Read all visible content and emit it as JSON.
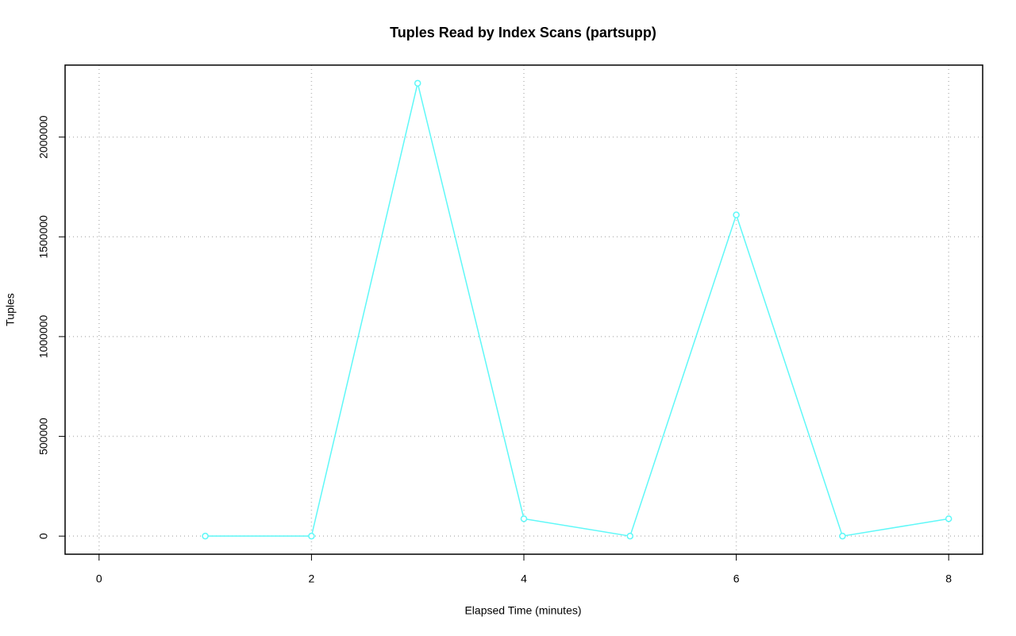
{
  "chart_data": {
    "type": "line",
    "title": "Tuples Read by Index Scans (partsupp)",
    "x_label": "Elapsed Time (minutes)",
    "y_label": "Tuples",
    "x": [
      1,
      2,
      3,
      4,
      5,
      6,
      7,
      8
    ],
    "series": [
      {
        "color": "#5ff8f8",
        "values": [
          0,
          0,
          2270000,
          87000,
          0,
          1610000,
          0,
          87000
        ]
      }
    ],
    "xlim": [
      -0.32,
      8.32
    ],
    "xticks": [
      0,
      2,
      4,
      6,
      8
    ],
    "ylim": [
      -90800,
      2360800
    ],
    "yticks": [
      0,
      500000,
      1000000,
      1500000,
      2000000
    ],
    "grid": true
  }
}
